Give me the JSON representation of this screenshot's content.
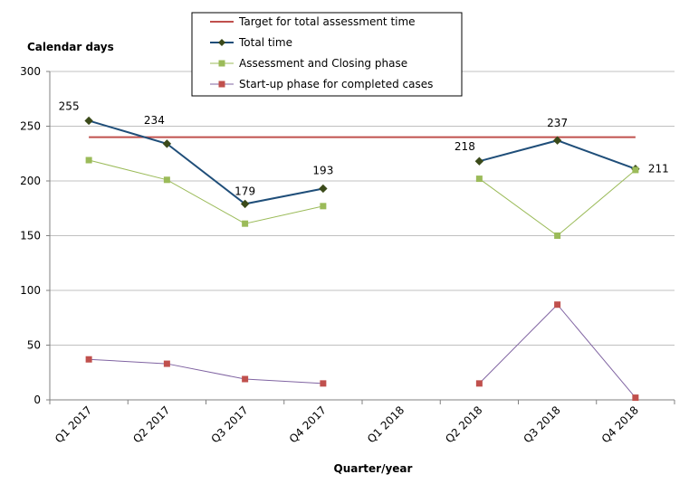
{
  "chart_data": {
    "type": "line",
    "ylabel": "Calendar days",
    "xlabel": "Quarter/year",
    "ylim": [
      0,
      300
    ],
    "yticks": [
      0,
      50,
      100,
      150,
      200,
      250,
      300
    ],
    "grid": "horizontal",
    "legend_position": "top-center",
    "categories": [
      "Q1 2017",
      "Q2 2017",
      "Q3 2017",
      "Q4 2017",
      "Q1 2018",
      "Q2 2018",
      "Q3 2018",
      "Q4 2018"
    ],
    "series": [
      {
        "name": "Target for total assessment time",
        "color": "#c0504d",
        "marker": "none",
        "values": [
          240,
          240,
          240,
          240,
          240,
          240,
          240,
          240
        ]
      },
      {
        "name": "Total time",
        "color": "#1f4e79",
        "marker": "diamond",
        "marker_color": "#3b4a1a",
        "values": [
          255,
          234,
          179,
          193,
          null,
          218,
          237,
          211
        ],
        "labels": [
          "255",
          "234",
          "179",
          "193",
          null,
          "218",
          "237",
          "211"
        ]
      },
      {
        "name": "Assessment and Closing phase",
        "color": "#9bbb59",
        "marker": "square",
        "marker_color": "#9bbb59",
        "values": [
          219,
          201,
          161,
          177,
          null,
          202,
          150,
          210
        ]
      },
      {
        "name": "Start-up phase for completed cases",
        "color": "#8064a2",
        "marker": "square",
        "marker_color": "#c0504d",
        "values": [
          37,
          33,
          19,
          15,
          null,
          15,
          87,
          2
        ]
      }
    ]
  }
}
